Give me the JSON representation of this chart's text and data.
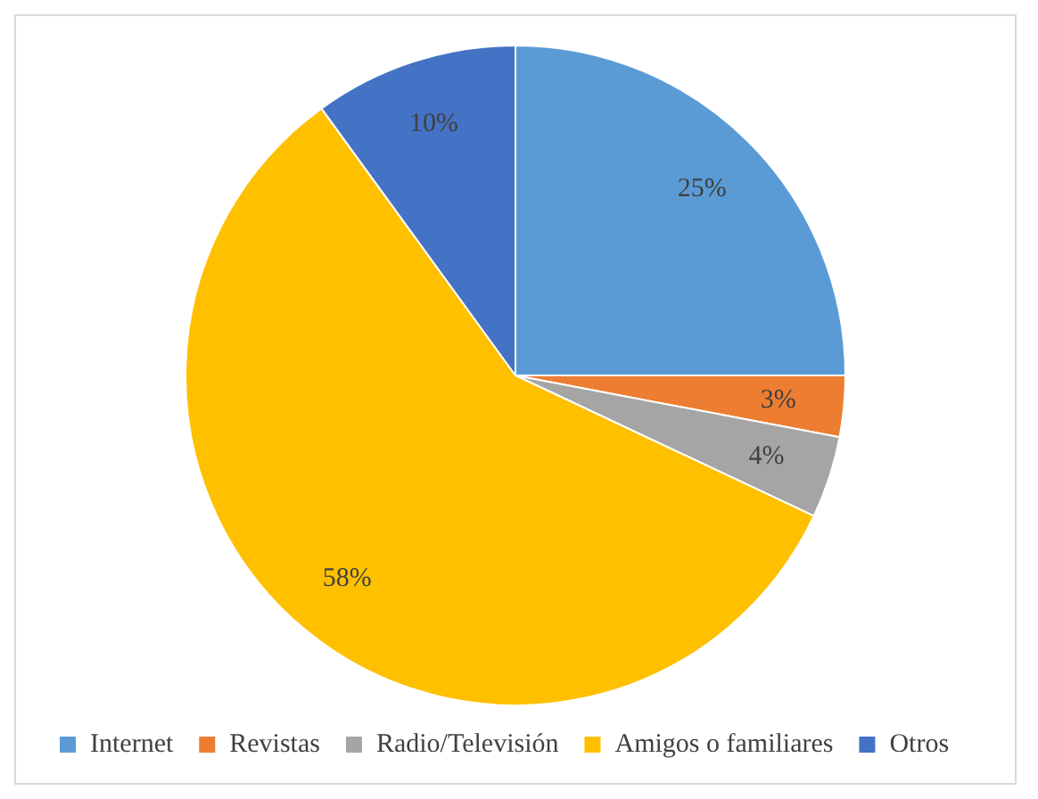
{
  "chart_data": {
    "type": "pie",
    "categories": [
      "Internet",
      "Revistas",
      "Radio/Televisión",
      "Amigos o familiares",
      "Otros"
    ],
    "values": [
      25,
      3,
      4,
      58,
      10
    ],
    "colors": [
      "#5b9bd5",
      "#ed7d31",
      "#a5a5a5",
      "#ffc000",
      "#4472c4"
    ],
    "value_labels": [
      "25%",
      "3%",
      "4%",
      "58%",
      "10%"
    ],
    "legend": "bottom"
  }
}
